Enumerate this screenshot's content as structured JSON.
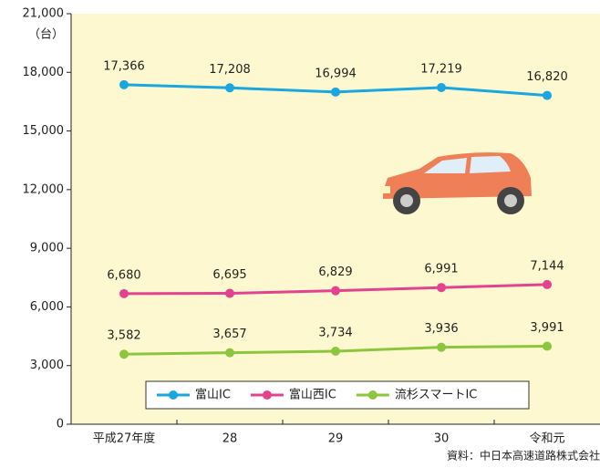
{
  "chart_data": {
    "type": "line",
    "y_axis_label": "（台）",
    "source": "資料：中日本高速道路株式会社",
    "categories": [
      "平成27年度",
      "28",
      "29",
      "30",
      "令和元"
    ],
    "series": [
      {
        "name": "富山IC",
        "color": "#1ba6de",
        "values": [
          17366,
          17208,
          16994,
          17219,
          16820
        ],
        "value_labels": [
          "17,366",
          "17,208",
          "16,994",
          "17,219",
          "16,820"
        ]
      },
      {
        "name": "富山西IC",
        "color": "#e2438f",
        "values": [
          6680,
          6695,
          6829,
          6991,
          7144
        ],
        "value_labels": [
          "6,680",
          "6,695",
          "6,829",
          "6,991",
          "7,144"
        ]
      },
      {
        "name": "流杉スマートIC",
        "color": "#8cc63f",
        "values": [
          3582,
          3657,
          3734,
          3936,
          3991
        ],
        "value_labels": [
          "3,582",
          "3,657",
          "3,734",
          "3,936",
          "3,991"
        ]
      }
    ],
    "ylim": [
      0,
      21000
    ],
    "yticks": [
      0,
      {
        "value": 3000,
        "label": "3,000"
      },
      {
        "value": 6000,
        "label": "6,000"
      },
      {
        "value": 9000,
        "label": "9,000"
      },
      {
        "value": 12000,
        "label": "12,000"
      },
      {
        "value": 15000,
        "label": "15,000"
      },
      {
        "value": 18000,
        "label": "18,000"
      },
      {
        "value": 21000,
        "label": "21,000"
      }
    ],
    "legend": "bottom"
  }
}
